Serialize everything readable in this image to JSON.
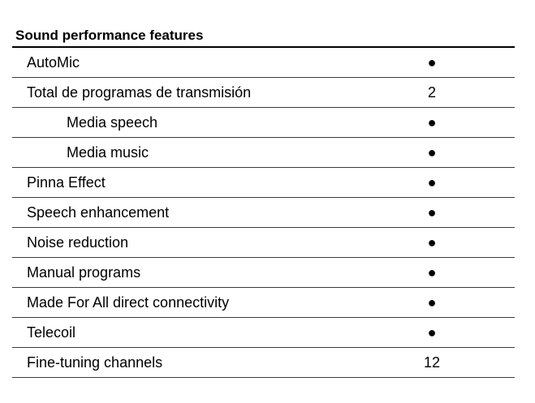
{
  "table": {
    "title": "Sound performance features",
    "rows": [
      {
        "label": "AutoMic",
        "value": "●"
      },
      {
        "label": "Total de programas de transmisión",
        "value": "2"
      },
      {
        "label": "Media speech",
        "value": "●"
      },
      {
        "label": "Media music",
        "value": "●"
      },
      {
        "label": "Pinna Effect",
        "value": "●"
      },
      {
        "label": "Speech enhancement",
        "value": "●"
      },
      {
        "label": "Noise reduction",
        "value": "●"
      },
      {
        "label": "Manual programs",
        "value": "●"
      },
      {
        "label": "Made For All direct connectivity",
        "value": "●"
      },
      {
        "label": "Telecoil",
        "value": "●"
      },
      {
        "label": "Fine-tuning channels",
        "value": "12"
      }
    ]
  }
}
